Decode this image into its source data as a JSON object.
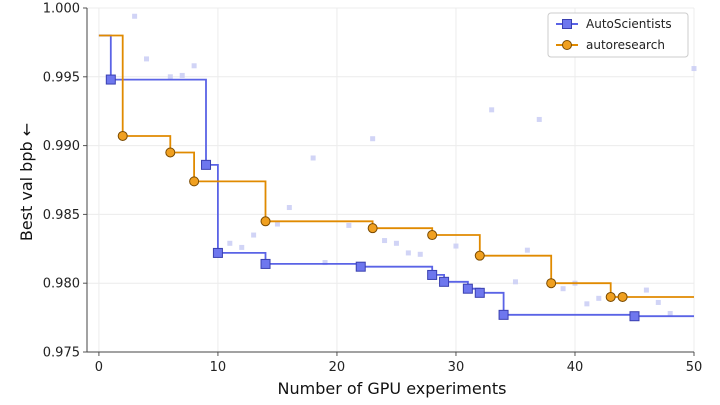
{
  "chart_data": {
    "type": "line",
    "xlabel": "Number of GPU experiments",
    "ylabel": "Best val bpb ←",
    "xlim": [
      -1,
      50
    ],
    "ylim": [
      0.975,
      1.0
    ],
    "x_ticks": [
      "0",
      "10",
      "20",
      "30",
      "40",
      "50"
    ],
    "y_ticks": [
      "0.975",
      "0.980",
      "0.985",
      "0.990",
      "0.995",
      "1.000"
    ],
    "grid": true,
    "legend_position": "top-right",
    "series": [
      {
        "name": "AutoScientists",
        "color": "#5a63e6",
        "marker": "square",
        "step_start": [
          0,
          0.998
        ],
        "step_end_x": 50,
        "improvements": [
          [
            1,
            0.9948
          ],
          [
            9,
            0.9886
          ],
          [
            10,
            0.9822
          ],
          [
            14,
            0.9814
          ],
          [
            22,
            0.9812
          ],
          [
            28,
            0.9806
          ],
          [
            29,
            0.9801
          ],
          [
            31,
            0.9796
          ],
          [
            32,
            0.9793
          ],
          [
            34,
            0.9777
          ],
          [
            45,
            0.9776
          ]
        ],
        "trials": [
          [
            3,
            0.9994
          ],
          [
            4,
            0.9963
          ],
          [
            6,
            0.995
          ],
          [
            7,
            0.9951
          ],
          [
            8,
            0.9958
          ],
          [
            11,
            0.9829
          ],
          [
            12,
            0.9826
          ],
          [
            13,
            0.9835
          ],
          [
            15,
            0.9843
          ],
          [
            16,
            0.9855
          ],
          [
            18,
            0.9891
          ],
          [
            19,
            0.9815
          ],
          [
            21,
            0.9842
          ],
          [
            23,
            0.9905
          ],
          [
            24,
            0.9831
          ],
          [
            25,
            0.9829
          ],
          [
            26,
            0.9822
          ],
          [
            27,
            0.9821
          ],
          [
            30,
            0.9827
          ],
          [
            33,
            0.9926
          ],
          [
            35,
            0.9801
          ],
          [
            36,
            0.9824
          ],
          [
            37,
            0.9919
          ],
          [
            39,
            0.9796
          ],
          [
            40,
            0.98
          ],
          [
            41,
            0.9785
          ],
          [
            42,
            0.9789
          ],
          [
            46,
            0.9795
          ],
          [
            47,
            0.9786
          ],
          [
            48,
            0.9778
          ],
          [
            50,
            0.9956
          ]
        ]
      },
      {
        "name": "autoresearch",
        "color": "#e08a00",
        "marker": "circle",
        "step_start": [
          0,
          0.998
        ],
        "step_end_x": 50,
        "improvements": [
          [
            2,
            0.9907
          ],
          [
            6,
            0.9895
          ],
          [
            8,
            0.9874
          ],
          [
            14,
            0.9845
          ],
          [
            23,
            0.984
          ],
          [
            28,
            0.9835
          ],
          [
            32,
            0.982
          ],
          [
            38,
            0.98
          ],
          [
            43,
            0.979
          ],
          [
            44,
            0.979
          ]
        ]
      }
    ]
  }
}
